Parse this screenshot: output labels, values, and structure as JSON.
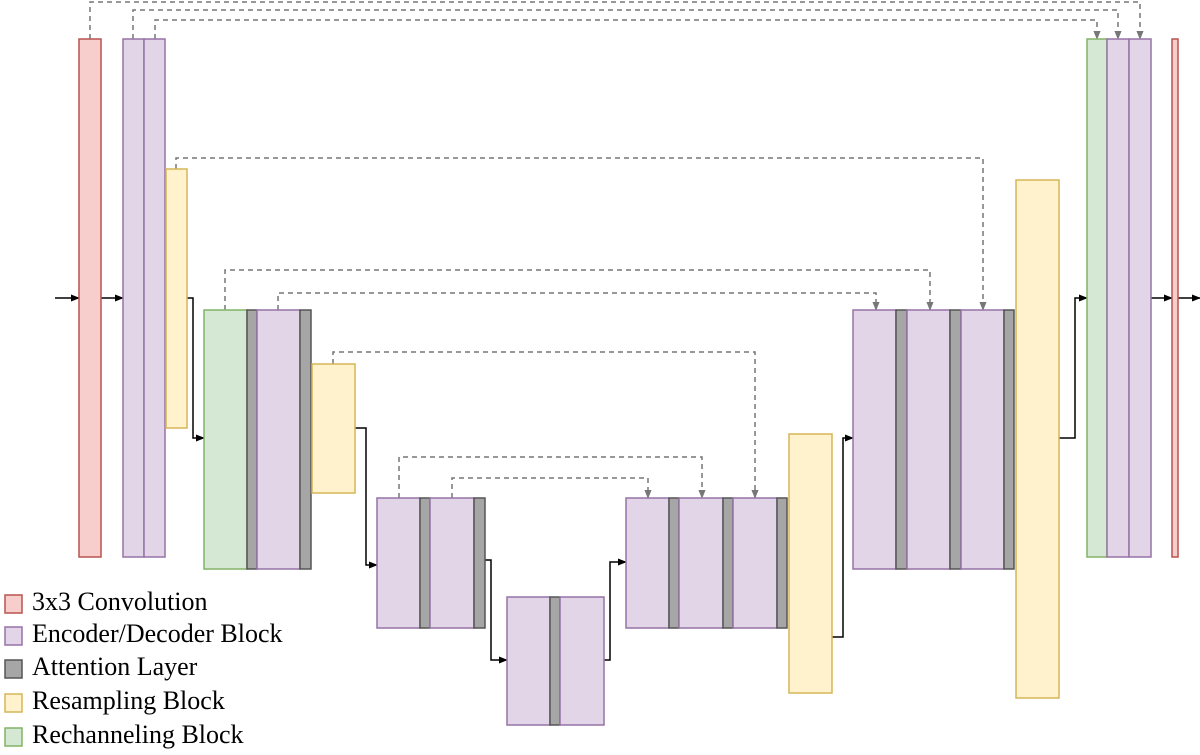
{
  "legend": [
    "3x3 Convolution",
    "Encoder/Decoder Block",
    "Attention Layer",
    "Resampling Block",
    "Rechanneling Block"
  ]
}
